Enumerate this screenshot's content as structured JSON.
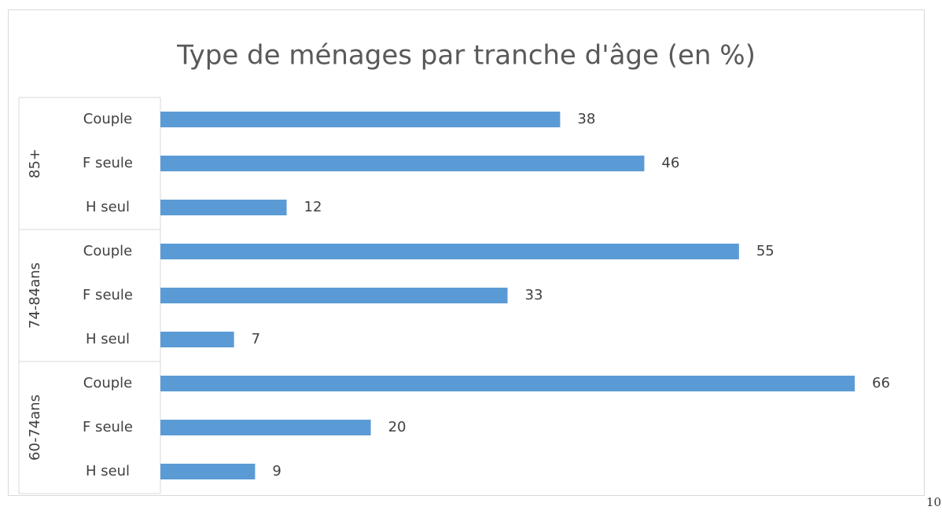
{
  "chart_data": {
    "type": "bar",
    "orientation": "horizontal",
    "title": "Type de ménages par tranche d'âge (en %)",
    "color": "#5b9bd5",
    "groups": [
      {
        "name": "85+",
        "categories": [
          "Couple",
          "F seule",
          "H seul"
        ],
        "values": [
          38,
          46,
          12
        ]
      },
      {
        "name": "74-84ans",
        "categories": [
          "Couple",
          "F seule",
          "H seul"
        ],
        "values": [
          55,
          33,
          7
        ]
      },
      {
        "name": "60-74ans",
        "categories": [
          "Couple",
          "F seule",
          "H seul"
        ],
        "values": [
          66,
          20,
          9
        ]
      }
    ]
  },
  "page_number": "10"
}
